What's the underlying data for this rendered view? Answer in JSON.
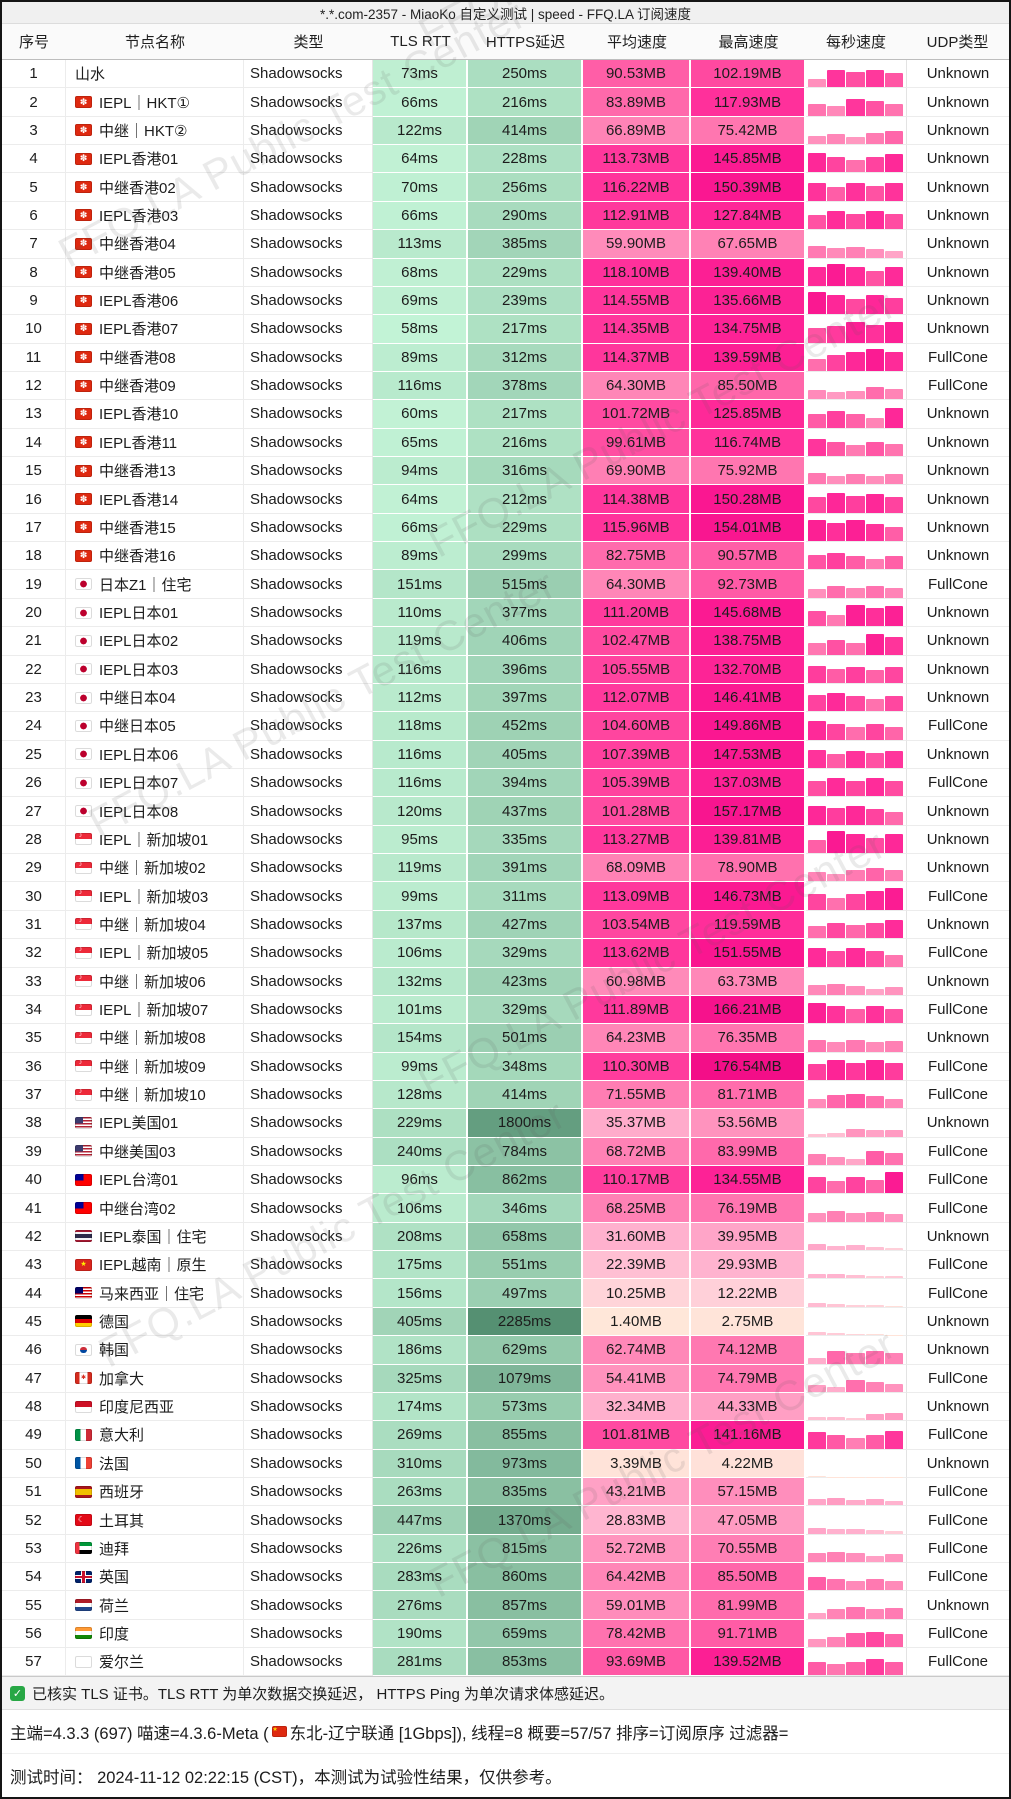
{
  "title": "*.*.com-2357 - MiaoKo 自定义测试 | speed - FFQ.LA 订阅速度",
  "watermark_text": "FFQ.LA Public Test Center",
  "table": {
    "columns": [
      "序号",
      "节点名称",
      "类型",
      "TLS RTT",
      "HTTPS延迟",
      "平均速度",
      "最高速度",
      "每秒速度",
      "UDP类型"
    ],
    "node_type": "Shadowsocks",
    "rows": [
      {
        "flag": "",
        "name": "山水",
        "tls": 73,
        "https": 250,
        "avg": 90.53,
        "max": 102.19,
        "udp": "Unknown"
      },
      {
        "flag": "hk",
        "name": "IEPL｜HKT①",
        "tls": 66,
        "https": 216,
        "avg": 83.89,
        "max": 117.93,
        "udp": "Unknown"
      },
      {
        "flag": "hk",
        "name": "中继｜HKT②",
        "tls": 122,
        "https": 414,
        "avg": 66.89,
        "max": 75.42,
        "udp": "Unknown"
      },
      {
        "flag": "hk",
        "name": "IEPL香港01",
        "tls": 64,
        "https": 228,
        "avg": 113.73,
        "max": 145.85,
        "udp": "Unknown"
      },
      {
        "flag": "hk",
        "name": "中继香港02",
        "tls": 70,
        "https": 256,
        "avg": 116.22,
        "max": 150.39,
        "udp": "Unknown"
      },
      {
        "flag": "hk",
        "name": "IEPL香港03",
        "tls": 66,
        "https": 290,
        "avg": 112.91,
        "max": 127.84,
        "udp": "Unknown"
      },
      {
        "flag": "hk",
        "name": "中继香港04",
        "tls": 113,
        "https": 385,
        "avg": 59.9,
        "max": 67.65,
        "udp": "Unknown"
      },
      {
        "flag": "hk",
        "name": "中继香港05",
        "tls": 68,
        "https": 229,
        "avg": 118.1,
        "max": 139.4,
        "udp": "Unknown"
      },
      {
        "flag": "hk",
        "name": "IEPL香港06",
        "tls": 69,
        "https": 239,
        "avg": 114.55,
        "max": 135.66,
        "udp": "Unknown"
      },
      {
        "flag": "hk",
        "name": "IEPL香港07",
        "tls": 58,
        "https": 217,
        "avg": 114.35,
        "max": 134.75,
        "udp": "Unknown"
      },
      {
        "flag": "hk",
        "name": "中继香港08",
        "tls": 89,
        "https": 312,
        "avg": 114.37,
        "max": 139.59,
        "udp": "FullCone"
      },
      {
        "flag": "hk",
        "name": "中继香港09",
        "tls": 116,
        "https": 378,
        "avg": 64.3,
        "max": 85.5,
        "udp": "FullCone"
      },
      {
        "flag": "hk",
        "name": "IEPL香港10",
        "tls": 60,
        "https": 217,
        "avg": 101.72,
        "max": 125.85,
        "udp": "Unknown"
      },
      {
        "flag": "hk",
        "name": "IEPL香港11",
        "tls": 65,
        "https": 216,
        "avg": 99.61,
        "max": 116.74,
        "udp": "Unknown"
      },
      {
        "flag": "hk",
        "name": "中继香港13",
        "tls": 94,
        "https": 316,
        "avg": 69.9,
        "max": 75.92,
        "udp": "Unknown"
      },
      {
        "flag": "hk",
        "name": "IEPL香港14",
        "tls": 64,
        "https": 212,
        "avg": 114.38,
        "max": 150.28,
        "udp": "Unknown"
      },
      {
        "flag": "hk",
        "name": "中继香港15",
        "tls": 66,
        "https": 229,
        "avg": 115.96,
        "max": 154.01,
        "udp": "Unknown"
      },
      {
        "flag": "hk",
        "name": "中继香港16",
        "tls": 89,
        "https": 299,
        "avg": 82.75,
        "max": 90.57,
        "udp": "Unknown"
      },
      {
        "flag": "jp",
        "name": "日本Z1｜住宅",
        "tls": 151,
        "https": 515,
        "avg": 64.3,
        "max": 92.73,
        "udp": "FullCone"
      },
      {
        "flag": "jp",
        "name": "IEPL日本01",
        "tls": 110,
        "https": 377,
        "avg": 111.2,
        "max": 145.68,
        "udp": "Unknown"
      },
      {
        "flag": "jp",
        "name": "IEPL日本02",
        "tls": 119,
        "https": 406,
        "avg": 102.47,
        "max": 138.75,
        "udp": "Unknown"
      },
      {
        "flag": "jp",
        "name": "IEPL日本03",
        "tls": 116,
        "https": 396,
        "avg": 105.55,
        "max": 132.7,
        "udp": "Unknown"
      },
      {
        "flag": "jp",
        "name": "中继日本04",
        "tls": 112,
        "https": 397,
        "avg": 112.07,
        "max": 146.41,
        "udp": "Unknown"
      },
      {
        "flag": "jp",
        "name": "中继日本05",
        "tls": 118,
        "https": 452,
        "avg": 104.6,
        "max": 149.86,
        "udp": "FullCone"
      },
      {
        "flag": "jp",
        "name": "IEPL日本06",
        "tls": 116,
        "https": 405,
        "avg": 107.39,
        "max": 147.53,
        "udp": "Unknown"
      },
      {
        "flag": "jp",
        "name": "IEPL日本07",
        "tls": 116,
        "https": 394,
        "avg": 105.39,
        "max": 137.03,
        "udp": "FullCone"
      },
      {
        "flag": "jp",
        "name": "IEPL日本08",
        "tls": 120,
        "https": 437,
        "avg": 101.28,
        "max": 157.17,
        "udp": "Unknown"
      },
      {
        "flag": "sg",
        "name": "IEPL｜新加坡01",
        "tls": 95,
        "https": 335,
        "avg": 113.27,
        "max": 139.81,
        "udp": "Unknown"
      },
      {
        "flag": "sg",
        "name": "中继｜新加坡02",
        "tls": 119,
        "https": 391,
        "avg": 68.09,
        "max": 78.9,
        "udp": "Unknown"
      },
      {
        "flag": "sg",
        "name": "IEPL｜新加坡03",
        "tls": 99,
        "https": 311,
        "avg": 113.09,
        "max": 146.73,
        "udp": "FullCone"
      },
      {
        "flag": "sg",
        "name": "中继｜新加坡04",
        "tls": 137,
        "https": 427,
        "avg": 103.54,
        "max": 119.59,
        "udp": "Unknown"
      },
      {
        "flag": "sg",
        "name": "IEPL｜新加坡05",
        "tls": 106,
        "https": 329,
        "avg": 113.62,
        "max": 151.55,
        "udp": "FullCone"
      },
      {
        "flag": "sg",
        "name": "中继｜新加坡06",
        "tls": 132,
        "https": 423,
        "avg": 60.98,
        "max": 63.73,
        "udp": "Unknown"
      },
      {
        "flag": "sg",
        "name": "IEPL｜新加坡07",
        "tls": 101,
        "https": 329,
        "avg": 111.89,
        "max": 166.21,
        "udp": "FullCone"
      },
      {
        "flag": "sg",
        "name": "中继｜新加坡08",
        "tls": 154,
        "https": 501,
        "avg": 64.23,
        "max": 76.35,
        "udp": "Unknown"
      },
      {
        "flag": "sg",
        "name": "中继｜新加坡09",
        "tls": 99,
        "https": 348,
        "avg": 110.3,
        "max": 176.54,
        "udp": "FullCone"
      },
      {
        "flag": "sg",
        "name": "中继｜新加坡10",
        "tls": 128,
        "https": 414,
        "avg": 71.55,
        "max": 81.71,
        "udp": "FullCone"
      },
      {
        "flag": "us",
        "name": "IEPL美国01",
        "tls": 229,
        "https": 1800,
        "avg": 35.37,
        "max": 53.56,
        "udp": "Unknown"
      },
      {
        "flag": "us",
        "name": "中继美国03",
        "tls": 240,
        "https": 784,
        "avg": 68.72,
        "max": 83.99,
        "udp": "FullCone"
      },
      {
        "flag": "tw",
        "name": "IEPL台湾01",
        "tls": 96,
        "https": 862,
        "avg": 110.17,
        "max": 134.55,
        "udp": "FullCone"
      },
      {
        "flag": "tw",
        "name": "中继台湾02",
        "tls": 106,
        "https": 346,
        "avg": 68.25,
        "max": 76.19,
        "udp": "FullCone"
      },
      {
        "flag": "th",
        "name": "IEPL泰国｜住宅",
        "tls": 208,
        "https": 658,
        "avg": 31.6,
        "max": 39.95,
        "udp": "Unknown"
      },
      {
        "flag": "vn",
        "name": "IEPL越南｜原生",
        "tls": 175,
        "https": 551,
        "avg": 22.39,
        "max": 29.93,
        "udp": "FullCone"
      },
      {
        "flag": "my",
        "name": "马来西亚｜住宅",
        "tls": 156,
        "https": 497,
        "avg": 10.25,
        "max": 12.22,
        "udp": "FullCone"
      },
      {
        "flag": "de",
        "name": "德国",
        "tls": 405,
        "https": 2285,
        "avg": 1.4,
        "max": 2.75,
        "udp": "Unknown"
      },
      {
        "flag": "kr",
        "name": "韩国",
        "tls": 186,
        "https": 629,
        "avg": 62.74,
        "max": 74.12,
        "udp": "Unknown"
      },
      {
        "flag": "ca",
        "name": "加拿大",
        "tls": 325,
        "https": 1079,
        "avg": 54.41,
        "max": 74.79,
        "udp": "FullCone"
      },
      {
        "flag": "id",
        "name": "印度尼西亚",
        "tls": 174,
        "https": 573,
        "avg": 32.34,
        "max": 44.33,
        "udp": "Unknown"
      },
      {
        "flag": "it",
        "name": "意大利",
        "tls": 269,
        "https": 855,
        "avg": 101.81,
        "max": 141.16,
        "udp": "FullCone"
      },
      {
        "flag": "fr",
        "name": "法国",
        "tls": 310,
        "https": 973,
        "avg": 3.39,
        "max": 4.22,
        "udp": "Unknown"
      },
      {
        "flag": "es",
        "name": "西班牙",
        "tls": 263,
        "https": 835,
        "avg": 43.21,
        "max": 57.15,
        "udp": "FullCone"
      },
      {
        "flag": "tr",
        "name": "土耳其",
        "tls": 447,
        "https": 1370,
        "avg": 28.83,
        "max": 47.05,
        "udp": "FullCone"
      },
      {
        "flag": "ae",
        "name": "迪拜",
        "tls": 226,
        "https": 815,
        "avg": 52.72,
        "max": 70.55,
        "udp": "FullCone"
      },
      {
        "flag": "gb",
        "name": "英国",
        "tls": 283,
        "https": 860,
        "avg": 64.42,
        "max": 85.5,
        "udp": "FullCone"
      },
      {
        "flag": "nl",
        "name": "荷兰",
        "tls": 276,
        "https": 857,
        "avg": 59.01,
        "max": 81.99,
        "udp": "Unknown"
      },
      {
        "flag": "in",
        "name": "印度",
        "tls": 190,
        "https": 659,
        "avg": 78.42,
        "max": 91.71,
        "udp": "FullCone"
      },
      {
        "flag": "ie",
        "name": "爱尔兰",
        "tls": 281,
        "https": 853,
        "avg": 93.69,
        "max": 139.52,
        "udp": "FullCone"
      }
    ],
    "units": {
      "latency": "ms",
      "speed": "MB"
    }
  },
  "footer": {
    "check_label": "已核实 TLS 证书。TLS RTT 为单次数据交换延迟， HTTPS Ping 为单次请求体感延迟。",
    "info_prefix": "主端=4.3.3 (697) 喵速=4.3.6-Meta (",
    "info_suffix": "东北-辽宁联通 [1Gbps]), 线程=8 概要=57/57 排序=订阅原序 过滤器=",
    "time_line": "测试时间： 2024-11-12 02:22:15 (CST)，本测试为试验性结果，仅供参考。"
  },
  "colors": {
    "green_light": [
      198,
      246,
      217
    ],
    "green_dark": [
      80,
      140,
      110
    ],
    "latency_range_ms": [
      50,
      2450
    ],
    "speed_stops": [
      [
        0,
        "#ffead9"
      ],
      [
        12,
        "#ffd0d9"
      ],
      [
        30,
        "#ffb3cf"
      ],
      [
        50,
        "#ff97c0"
      ],
      [
        70,
        "#ff7fb4"
      ],
      [
        90,
        "#ff5fa7"
      ],
      [
        105,
        "#ff449f"
      ],
      [
        120,
        "#ff2d9a"
      ],
      [
        150,
        "#fa1791"
      ],
      [
        180,
        "#f20d87"
      ]
    ],
    "speed_scale_max_mb": 175,
    "bar_pattern": [
      0.82,
      1.08,
      0.95,
      1.15,
      1.0
    ]
  }
}
